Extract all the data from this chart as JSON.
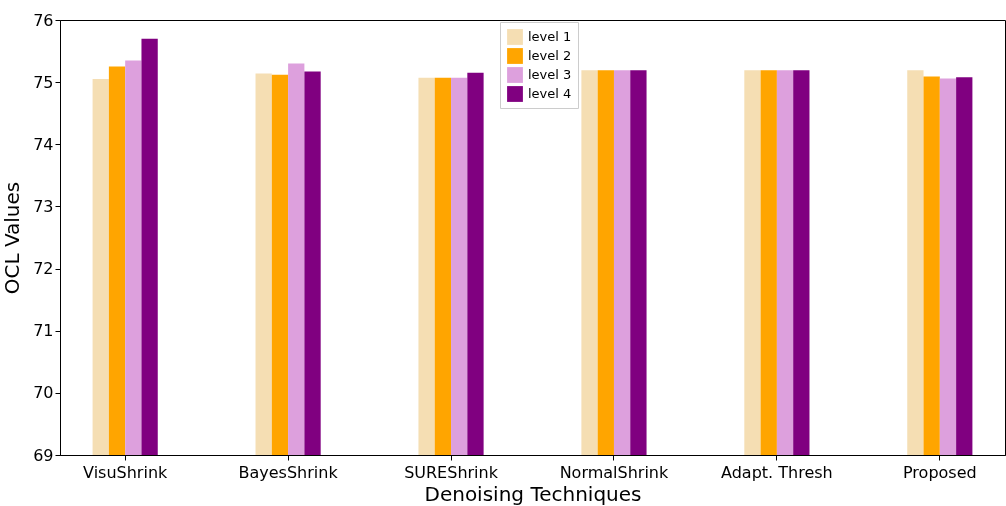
{
  "chart_data": {
    "type": "bar",
    "xlabel": "Denoising Techniques",
    "ylabel": "OCL Values",
    "categories": [
      "VisuShrink",
      "BayesShrink",
      "SUREShrink",
      "NormalShrink",
      "Adapt. Thresh",
      "Proposed"
    ],
    "series": [
      {
        "name": "level 1",
        "color": "#f5deb3",
        "values": [
          75.05,
          75.14,
          75.07,
          75.19,
          75.19,
          75.19
        ]
      },
      {
        "name": "level 2",
        "color": "#ffa500",
        "values": [
          75.25,
          75.12,
          75.07,
          75.19,
          75.19,
          75.09
        ]
      },
      {
        "name": "level 3",
        "color": "#dda0dd",
        "values": [
          75.35,
          75.3,
          75.07,
          75.19,
          75.19,
          75.06
        ]
      },
      {
        "name": "level 4",
        "color": "#800080",
        "values": [
          75.7,
          75.17,
          75.15,
          75.19,
          75.19,
          75.08
        ]
      }
    ],
    "ylim": [
      69,
      76
    ],
    "yticks": [
      69,
      70,
      71,
      72,
      73,
      74,
      75,
      76
    ],
    "grid": false,
    "legend": "top"
  }
}
